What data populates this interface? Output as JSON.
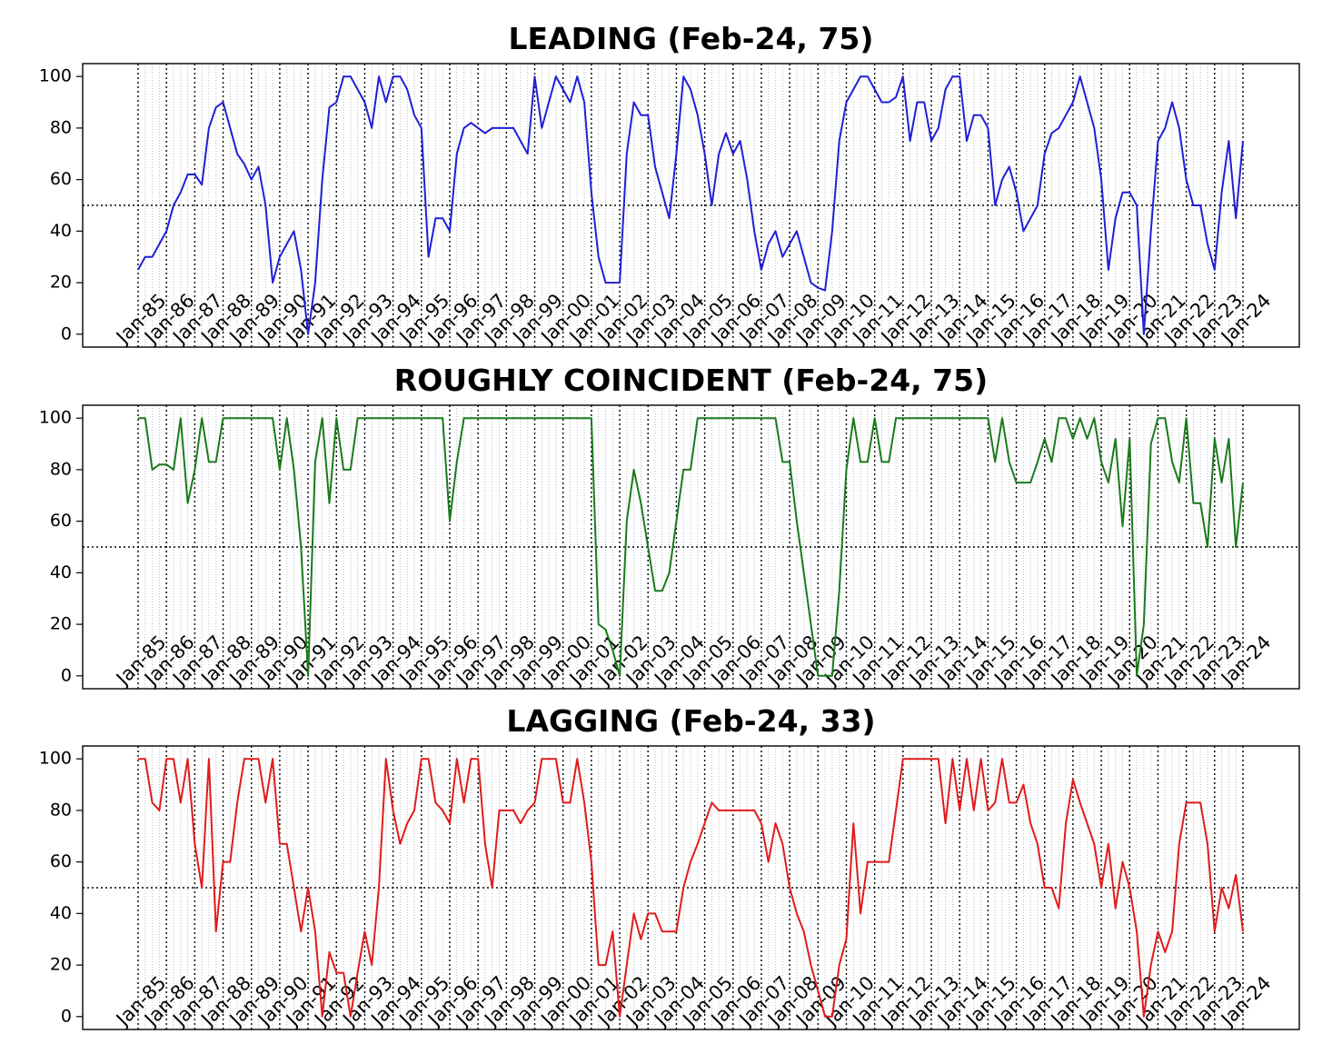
{
  "chart_data": [
    {
      "type": "line",
      "title": "LEADING (Feb-24, 75)",
      "color": "#1f1fd6",
      "hline": 50,
      "ylim": [
        -5,
        105
      ],
      "yticks": [
        0,
        20,
        40,
        60,
        80,
        100
      ],
      "x": [
        "Jan-85",
        "Apr-85",
        "Jul-85",
        "Oct-85",
        "Jan-86",
        "Apr-86",
        "Jul-86",
        "Oct-86",
        "Jan-87",
        "Apr-87",
        "Jul-87",
        "Oct-87",
        "Jan-88",
        "Apr-88",
        "Jul-88",
        "Oct-88",
        "Jan-89",
        "Apr-89",
        "Jul-89",
        "Oct-89",
        "Jan-90",
        "Apr-90",
        "Jul-90",
        "Oct-90",
        "Jan-91",
        "Apr-91",
        "Jul-91",
        "Oct-91",
        "Jan-92",
        "Apr-92",
        "Jul-92",
        "Oct-92",
        "Jan-93",
        "Apr-93",
        "Jul-93",
        "Oct-93",
        "Jan-94",
        "Apr-94",
        "Jul-94",
        "Oct-94",
        "Jan-95",
        "Apr-95",
        "Jul-95",
        "Oct-95",
        "Jan-96",
        "Apr-96",
        "Jul-96",
        "Oct-96",
        "Jan-97",
        "Apr-97",
        "Jul-97",
        "Oct-97",
        "Jan-98",
        "Apr-98",
        "Jul-98",
        "Oct-98",
        "Jan-99",
        "Apr-99",
        "Jul-99",
        "Oct-99",
        "Jan-00",
        "Apr-00",
        "Jul-00",
        "Oct-00",
        "Jan-01",
        "Apr-01",
        "Jul-01",
        "Oct-01",
        "Jan-02",
        "Apr-02",
        "Jul-02",
        "Oct-02",
        "Jan-03",
        "Apr-03",
        "Jul-03",
        "Oct-03",
        "Jan-04",
        "Apr-04",
        "Jul-04",
        "Oct-04",
        "Jan-05",
        "Apr-05",
        "Jul-05",
        "Oct-05",
        "Jan-06",
        "Apr-06",
        "Jul-06",
        "Oct-06",
        "Jan-07",
        "Apr-07",
        "Jul-07",
        "Oct-07",
        "Jan-08",
        "Apr-08",
        "Jul-08",
        "Oct-08",
        "Jan-09",
        "Apr-09",
        "Jul-09",
        "Oct-09",
        "Jan-10",
        "Apr-10",
        "Jul-10",
        "Oct-10",
        "Jan-11",
        "Apr-11",
        "Jul-11",
        "Oct-11",
        "Jan-12",
        "Apr-12",
        "Jul-12",
        "Oct-12",
        "Jan-13",
        "Apr-13",
        "Jul-13",
        "Oct-13",
        "Jan-14",
        "Apr-14",
        "Jul-14",
        "Oct-14",
        "Jan-15",
        "Apr-15",
        "Jul-15",
        "Oct-15",
        "Jan-16",
        "Apr-16",
        "Jul-16",
        "Oct-16",
        "Jan-17",
        "Apr-17",
        "Jul-17",
        "Oct-17",
        "Jan-18",
        "Apr-18",
        "Jul-18",
        "Oct-18",
        "Jan-19",
        "Apr-19",
        "Jul-19",
        "Oct-19",
        "Jan-20",
        "Apr-20",
        "Jul-20",
        "Oct-20",
        "Jan-21",
        "Apr-21",
        "Jul-21",
        "Oct-21",
        "Jan-22",
        "Apr-22",
        "Jul-22",
        "Oct-22",
        "Jan-23",
        "Apr-23",
        "Jul-23",
        "Oct-23",
        "Jan-24"
      ],
      "values": [
        25,
        30,
        30,
        35,
        40,
        50,
        55,
        62,
        62,
        58,
        80,
        88,
        90,
        80,
        70,
        66,
        60,
        65,
        50,
        20,
        30,
        35,
        40,
        25,
        0,
        20,
        60,
        88,
        90,
        100,
        100,
        95,
        90,
        80,
        100,
        90,
        100,
        100,
        95,
        85,
        80,
        30,
        45,
        45,
        40,
        70,
        80,
        82,
        80,
        78,
        80,
        80,
        80,
        80,
        75,
        70,
        100,
        80,
        90,
        100,
        95,
        90,
        100,
        90,
        55,
        30,
        20,
        20,
        20,
        70,
        90,
        85,
        85,
        65,
        55,
        45,
        70,
        100,
        95,
        85,
        70,
        50,
        70,
        78,
        70,
        75,
        60,
        40,
        25,
        35,
        40,
        30,
        35,
        40,
        30,
        20,
        18,
        17,
        40,
        75,
        90,
        95,
        100,
        100,
        95,
        90,
        90,
        92,
        100,
        75,
        90,
        90,
        75,
        80,
        95,
        100,
        100,
        75,
        85,
        85,
        80,
        50,
        60,
        65,
        55,
        40,
        45,
        50,
        70,
        78,
        80,
        85,
        90,
        100,
        90,
        80,
        60,
        25,
        45,
        55,
        55,
        50,
        0,
        40,
        75,
        80,
        90,
        80,
        60,
        50,
        50,
        35,
        25,
        55,
        75,
        45,
        75
      ]
    },
    {
      "type": "line",
      "title": "ROUGHLY COINCIDENT (Feb-24, 75)",
      "color": "#1a7a1a",
      "hline": 50,
      "ylim": [
        -5,
        105
      ],
      "yticks": [
        0,
        20,
        40,
        60,
        80,
        100
      ],
      "x": [
        "Jan-85",
        "Apr-85",
        "Jul-85",
        "Oct-85",
        "Jan-86",
        "Apr-86",
        "Jul-86",
        "Oct-86",
        "Jan-87",
        "Apr-87",
        "Jul-87",
        "Oct-87",
        "Jan-88",
        "Apr-88",
        "Jul-88",
        "Oct-88",
        "Jan-89",
        "Apr-89",
        "Jul-89",
        "Oct-89",
        "Jan-90",
        "Apr-90",
        "Jul-90",
        "Oct-90",
        "Jan-91",
        "Apr-91",
        "Jul-91",
        "Oct-91",
        "Jan-92",
        "Apr-92",
        "Jul-92",
        "Oct-92",
        "Jan-93",
        "Apr-93",
        "Jul-93",
        "Oct-93",
        "Jan-94",
        "Apr-94",
        "Jul-94",
        "Oct-94",
        "Jan-95",
        "Apr-95",
        "Jul-95",
        "Oct-95",
        "Jan-96",
        "Apr-96",
        "Jul-96",
        "Oct-96",
        "Jan-97",
        "Apr-97",
        "Jul-97",
        "Oct-97",
        "Jan-98",
        "Apr-98",
        "Jul-98",
        "Oct-98",
        "Jan-99",
        "Apr-99",
        "Jul-99",
        "Oct-99",
        "Jan-00",
        "Apr-00",
        "Jul-00",
        "Oct-00",
        "Jan-01",
        "Apr-01",
        "Jul-01",
        "Oct-01",
        "Jan-02",
        "Apr-02",
        "Jul-02",
        "Oct-02",
        "Jan-03",
        "Apr-03",
        "Jul-03",
        "Oct-03",
        "Jan-04",
        "Apr-04",
        "Jul-04",
        "Oct-04",
        "Jan-05",
        "Apr-05",
        "Jul-05",
        "Oct-05",
        "Jan-06",
        "Apr-06",
        "Jul-06",
        "Oct-06",
        "Jan-07",
        "Apr-07",
        "Jul-07",
        "Oct-07",
        "Jan-08",
        "Apr-08",
        "Jul-08",
        "Oct-08",
        "Jan-09",
        "Apr-09",
        "Jul-09",
        "Oct-09",
        "Jan-10",
        "Apr-10",
        "Jul-10",
        "Oct-10",
        "Jan-11",
        "Apr-11",
        "Jul-11",
        "Oct-11",
        "Jan-12",
        "Apr-12",
        "Jul-12",
        "Oct-12",
        "Jan-13",
        "Apr-13",
        "Jul-13",
        "Oct-13",
        "Jan-14",
        "Apr-14",
        "Jul-14",
        "Oct-14",
        "Jan-15",
        "Apr-15",
        "Jul-15",
        "Oct-15",
        "Jan-16",
        "Apr-16",
        "Jul-16",
        "Oct-16",
        "Jan-17",
        "Apr-17",
        "Jul-17",
        "Oct-17",
        "Jan-18",
        "Apr-18",
        "Jul-18",
        "Oct-18",
        "Jan-19",
        "Apr-19",
        "Jul-19",
        "Oct-19",
        "Jan-20",
        "Apr-20",
        "Jul-20",
        "Oct-20",
        "Jan-21",
        "Apr-21",
        "Jul-21",
        "Oct-21",
        "Jan-22",
        "Apr-22",
        "Jul-22",
        "Oct-22",
        "Jan-23",
        "Apr-23",
        "Jul-23",
        "Oct-23",
        "Jan-24"
      ],
      "values": [
        100,
        100,
        80,
        82,
        82,
        80,
        100,
        67,
        80,
        100,
        83,
        83,
        100,
        100,
        100,
        100,
        100,
        100,
        100,
        100,
        80,
        100,
        80,
        50,
        0,
        83,
        100,
        67,
        100,
        80,
        80,
        100,
        100,
        100,
        100,
        100,
        100,
        100,
        100,
        100,
        100,
        100,
        100,
        100,
        60,
        83,
        100,
        100,
        100,
        100,
        100,
        100,
        100,
        100,
        100,
        100,
        100,
        100,
        100,
        100,
        100,
        100,
        100,
        100,
        100,
        20,
        18,
        10,
        0,
        60,
        80,
        67,
        50,
        33,
        33,
        40,
        60,
        80,
        80,
        100,
        100,
        100,
        100,
        100,
        100,
        100,
        100,
        100,
        100,
        100,
        100,
        83,
        83,
        60,
        40,
        20,
        0,
        0,
        0,
        33,
        80,
        100,
        83,
        83,
        100,
        83,
        83,
        100,
        100,
        100,
        100,
        100,
        100,
        100,
        100,
        100,
        100,
        100,
        100,
        100,
        100,
        83,
        100,
        83,
        75,
        75,
        75,
        83,
        92,
        83,
        100,
        100,
        92,
        100,
        92,
        100,
        83,
        75,
        92,
        58,
        92,
        0,
        20,
        90,
        100,
        100,
        83,
        75,
        100,
        67,
        67,
        50,
        92,
        75,
        92,
        50,
        75
      ]
    },
    {
      "type": "line",
      "title": "LAGGING (Feb-24, 33)",
      "color": "#e01b1b",
      "hline": 50,
      "ylim": [
        -5,
        105
      ],
      "yticks": [
        0,
        20,
        40,
        60,
        80,
        100
      ],
      "x": [
        "Jan-85",
        "Apr-85",
        "Jul-85",
        "Oct-85",
        "Jan-86",
        "Apr-86",
        "Jul-86",
        "Oct-86",
        "Jan-87",
        "Apr-87",
        "Jul-87",
        "Oct-87",
        "Jan-88",
        "Apr-88",
        "Jul-88",
        "Oct-88",
        "Jan-89",
        "Apr-89",
        "Jul-89",
        "Oct-89",
        "Jan-90",
        "Apr-90",
        "Jul-90",
        "Oct-90",
        "Jan-91",
        "Apr-91",
        "Jul-91",
        "Oct-91",
        "Jan-92",
        "Apr-92",
        "Jul-92",
        "Oct-92",
        "Jan-93",
        "Apr-93",
        "Jul-93",
        "Oct-93",
        "Jan-94",
        "Apr-94",
        "Jul-94",
        "Oct-94",
        "Jan-95",
        "Apr-95",
        "Jul-95",
        "Oct-95",
        "Jan-96",
        "Apr-96",
        "Jul-96",
        "Oct-96",
        "Jan-97",
        "Apr-97",
        "Jul-97",
        "Oct-97",
        "Jan-98",
        "Apr-98",
        "Jul-98",
        "Oct-98",
        "Jan-99",
        "Apr-99",
        "Jul-99",
        "Oct-99",
        "Jan-00",
        "Apr-00",
        "Jul-00",
        "Oct-00",
        "Jan-01",
        "Apr-01",
        "Jul-01",
        "Oct-01",
        "Jan-02",
        "Apr-02",
        "Jul-02",
        "Oct-02",
        "Jan-03",
        "Apr-03",
        "Jul-03",
        "Oct-03",
        "Jan-04",
        "Apr-04",
        "Jul-04",
        "Oct-04",
        "Jan-05",
        "Apr-05",
        "Jul-05",
        "Oct-05",
        "Jan-06",
        "Apr-06",
        "Jul-06",
        "Oct-06",
        "Jan-07",
        "Apr-07",
        "Jul-07",
        "Oct-07",
        "Jan-08",
        "Apr-08",
        "Jul-08",
        "Oct-08",
        "Jan-09",
        "Apr-09",
        "Jul-09",
        "Oct-09",
        "Jan-10",
        "Apr-10",
        "Jul-10",
        "Oct-10",
        "Jan-11",
        "Apr-11",
        "Jul-11",
        "Oct-11",
        "Jan-12",
        "Apr-12",
        "Jul-12",
        "Oct-12",
        "Jan-13",
        "Apr-13",
        "Jul-13",
        "Oct-13",
        "Jan-14",
        "Apr-14",
        "Jul-14",
        "Oct-14",
        "Jan-15",
        "Apr-15",
        "Jul-15",
        "Oct-15",
        "Jan-16",
        "Apr-16",
        "Jul-16",
        "Oct-16",
        "Jan-17",
        "Apr-17",
        "Jul-17",
        "Oct-17",
        "Jan-18",
        "Apr-18",
        "Jul-18",
        "Oct-18",
        "Jan-19",
        "Apr-19",
        "Jul-19",
        "Oct-19",
        "Jan-20",
        "Apr-20",
        "Jul-20",
        "Oct-20",
        "Jan-21",
        "Apr-21",
        "Jul-21",
        "Oct-21",
        "Jan-22",
        "Apr-22",
        "Jul-22",
        "Oct-22",
        "Jan-23",
        "Apr-23",
        "Jul-23",
        "Oct-23",
        "Jan-24"
      ],
      "values": [
        100,
        100,
        83,
        80,
        100,
        100,
        83,
        100,
        67,
        50,
        100,
        33,
        60,
        60,
        83,
        100,
        100,
        100,
        83,
        100,
        67,
        67,
        50,
        33,
        50,
        33,
        0,
        25,
        17,
        17,
        0,
        17,
        33,
        20,
        50,
        100,
        80,
        67,
        75,
        80,
        100,
        100,
        83,
        80,
        75,
        100,
        83,
        100,
        100,
        67,
        50,
        80,
        80,
        80,
        75,
        80,
        83,
        100,
        100,
        100,
        83,
        83,
        100,
        83,
        60,
        20,
        20,
        33,
        0,
        20,
        40,
        30,
        40,
        40,
        33,
        33,
        33,
        50,
        60,
        67,
        75,
        83,
        80,
        80,
        80,
        80,
        80,
        80,
        75,
        60,
        75,
        67,
        50,
        40,
        33,
        20,
        10,
        0,
        0,
        20,
        30,
        75,
        40,
        60,
        60,
        60,
        60,
        80,
        100,
        100,
        100,
        100,
        100,
        100,
        75,
        100,
        80,
        100,
        80,
        100,
        80,
        83,
        100,
        83,
        83,
        90,
        75,
        67,
        50,
        50,
        42,
        75,
        92,
        83,
        75,
        67,
        50,
        67,
        42,
        60,
        50,
        33,
        0,
        20,
        33,
        25,
        33,
        67,
        83,
        83,
        83,
        67,
        33,
        50,
        42,
        55,
        33
      ]
    }
  ]
}
